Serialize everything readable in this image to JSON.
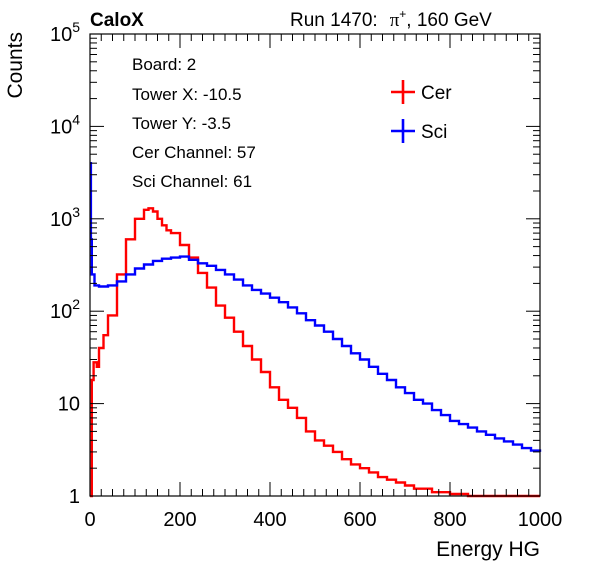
{
  "header": {
    "brand": "CaloX",
    "run_prefix": "Run 1470:",
    "particle": "π",
    "charge": "+",
    "energy": ", 160 GeV"
  },
  "info": {
    "board": "Board: 2",
    "tower_x": "Tower X: -10.5",
    "tower_y": "Tower Y: -3.5",
    "cer_channel": "Cer Channel: 57",
    "sci_channel": "Sci Channel: 61"
  },
  "chart_data": {
    "type": "line",
    "xlabel": "Energy HG",
    "ylabel": "Counts",
    "xlim": [
      0,
      1000
    ],
    "ylim": [
      1,
      100000
    ],
    "y_scale": "log",
    "x_ticks": [
      0,
      200,
      400,
      600,
      800,
      1000
    ],
    "x_tick_labels": [
      "0",
      "200",
      "400",
      "600",
      "800",
      "1000"
    ],
    "y_ticks": [
      1,
      10,
      100,
      1000,
      10000,
      100000
    ],
    "y_tick_labels": [
      {
        "base": "1",
        "exp": ""
      },
      {
        "base": "10",
        "exp": ""
      },
      {
        "base": "10",
        "exp": "2"
      },
      {
        "base": "10",
        "exp": "3"
      },
      {
        "base": "10",
        "exp": "4"
      },
      {
        "base": "10",
        "exp": "5"
      }
    ],
    "legend_position": "top-right",
    "series": [
      {
        "name": "Cer",
        "color": "#ff0000",
        "x": [
          0,
          4,
          8,
          15,
          20,
          30,
          40,
          60,
          80,
          100,
          120,
          130,
          140,
          150,
          160,
          170,
          180,
          200,
          220,
          240,
          260,
          280,
          300,
          320,
          340,
          360,
          380,
          400,
          420,
          440,
          460,
          480,
          500,
          520,
          540,
          560,
          580,
          600,
          620,
          640,
          660,
          680,
          700,
          720,
          740,
          760,
          780,
          800,
          820,
          840,
          860,
          880,
          900,
          920,
          940,
          960,
          980,
          1000
        ],
        "y": [
          1,
          18,
          28,
          25,
          40,
          55,
          90,
          250,
          600,
          1000,
          1250,
          1300,
          1200,
          1000,
          850,
          750,
          700,
          520,
          380,
          260,
          180,
          115,
          85,
          60,
          42,
          30,
          22,
          15,
          11,
          9,
          7,
          5,
          4,
          3.5,
          3,
          2.5,
          2.2,
          2,
          1.8,
          1.6,
          1.5,
          1.4,
          1.3,
          1.2,
          1.2,
          1.1,
          1.1,
          1.05,
          1.05,
          1,
          1,
          1,
          1,
          1,
          1,
          1,
          1,
          1
        ]
      },
      {
        "name": "Sci",
        "color": "#0000ff",
        "x": [
          0,
          2,
          4,
          10,
          20,
          40,
          60,
          80,
          100,
          120,
          140,
          160,
          180,
          200,
          220,
          240,
          260,
          280,
          300,
          320,
          340,
          360,
          380,
          400,
          420,
          440,
          460,
          480,
          500,
          520,
          540,
          560,
          580,
          600,
          620,
          640,
          660,
          680,
          700,
          720,
          740,
          760,
          780,
          800,
          820,
          840,
          860,
          880,
          900,
          920,
          940,
          960,
          980,
          1000
        ],
        "y": [
          4000,
          600,
          250,
          190,
          185,
          190,
          210,
          250,
          290,
          320,
          350,
          370,
          380,
          390,
          360,
          330,
          310,
          280,
          250,
          220,
          190,
          170,
          155,
          140,
          125,
          110,
          95,
          80,
          70,
          60,
          50,
          42,
          35,
          30,
          25,
          21,
          18,
          15,
          13,
          11,
          10,
          8.5,
          7.5,
          6.5,
          6,
          5.5,
          5,
          4.6,
          4.2,
          3.9,
          3.6,
          3.3,
          3.1,
          3
        ]
      }
    ]
  }
}
